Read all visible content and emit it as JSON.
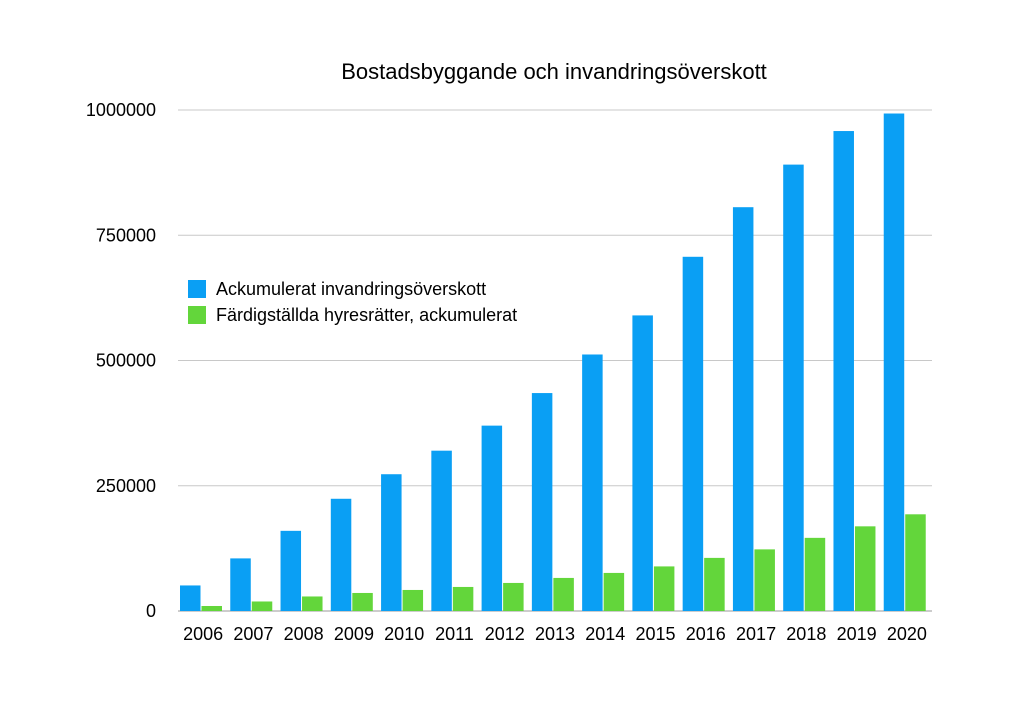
{
  "chart_data": {
    "type": "bar",
    "title": "Bostadsbyggande och invandringsöverskott",
    "xlabel": "",
    "ylabel": "",
    "categories": [
      "2006",
      "2007",
      "2008",
      "2009",
      "2010",
      "2011",
      "2012",
      "2013",
      "2014",
      "2015",
      "2016",
      "2017",
      "2018",
      "2019",
      "2020"
    ],
    "series": [
      {
        "name": "Ackumulerat invandringsöverskott",
        "color": "#0a9ff4",
        "values": [
          51000,
          105000,
          160000,
          224000,
          273000,
          320000,
          370000,
          435000,
          512000,
          590000,
          707000,
          806000,
          891000,
          958000,
          993000
        ]
      },
      {
        "name": "Färdigställda hyresrätter, ackumulerat",
        "color": "#63d63b",
        "values": [
          10000,
          19000,
          29000,
          36000,
          42000,
          48000,
          56000,
          66000,
          76000,
          89000,
          106000,
          123000,
          146000,
          169000,
          193000
        ]
      }
    ],
    "ylim": [
      0,
      1000000
    ],
    "yticks": [
      "0",
      "250000",
      "500000",
      "750000",
      "1000000"
    ],
    "ytick_values": [
      0,
      250000,
      500000,
      750000,
      1000000
    ],
    "grid": true,
    "legend_position": "upper-left"
  }
}
